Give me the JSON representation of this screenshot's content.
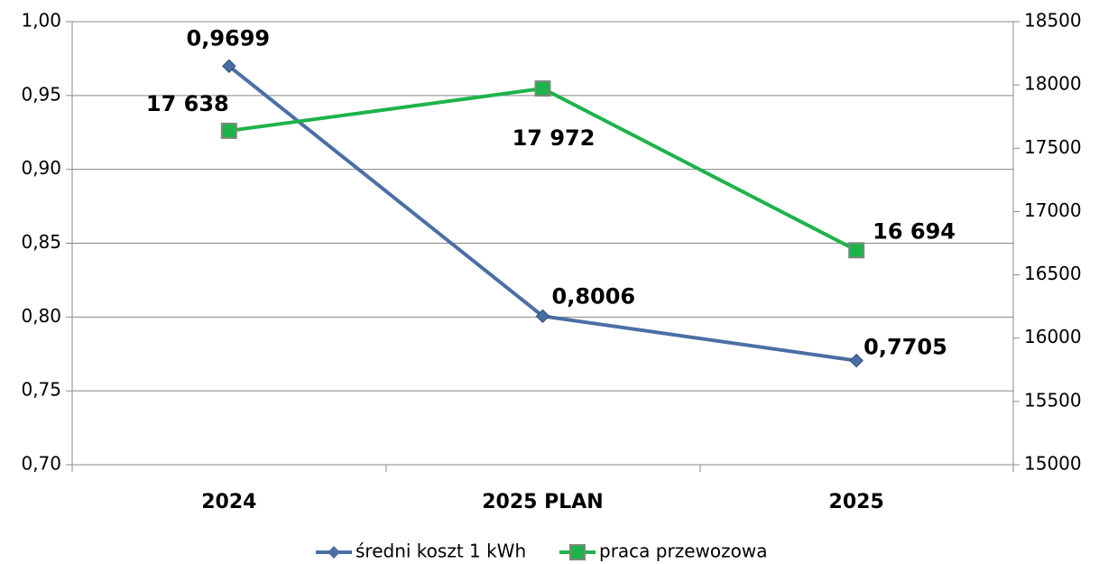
{
  "chart_data": {
    "type": "line",
    "categories": [
      "2024",
      "2025 PLAN",
      "2025"
    ],
    "series": [
      {
        "name": "średni koszt 1 kWh",
        "color": "#4a6fa5",
        "values": [
          0.9699,
          0.8006,
          0.7705
        ],
        "value_labels": [
          "0,9699",
          "0,8006",
          "0,7705"
        ]
      },
      {
        "name": "praca przewozowa",
        "color": "#1db34a",
        "axis": "y2",
        "values": [
          17638,
          17972,
          16694
        ],
        "value_labels": [
          "17 638",
          "17 972",
          "16 694"
        ]
      }
    ],
    "ylim": [
      0.7,
      1.0
    ],
    "yticks": [
      {
        "value": 0.7,
        "label": "0,70"
      },
      {
        "value": 0.75,
        "label": "0,75"
      },
      {
        "value": 0.8,
        "label": "0,80"
      },
      {
        "value": 0.85,
        "label": "0,85"
      },
      {
        "value": 0.9,
        "label": "0,90"
      },
      {
        "value": 0.95,
        "label": "0,95"
      },
      {
        "value": 1.0,
        "label": "1,00"
      }
    ],
    "y2lim": [
      15000,
      18500
    ],
    "y2ticks": [
      15000,
      15500,
      16000,
      16500,
      17000,
      17500,
      18000,
      18500
    ],
    "grid": true,
    "legend": "bottom"
  }
}
